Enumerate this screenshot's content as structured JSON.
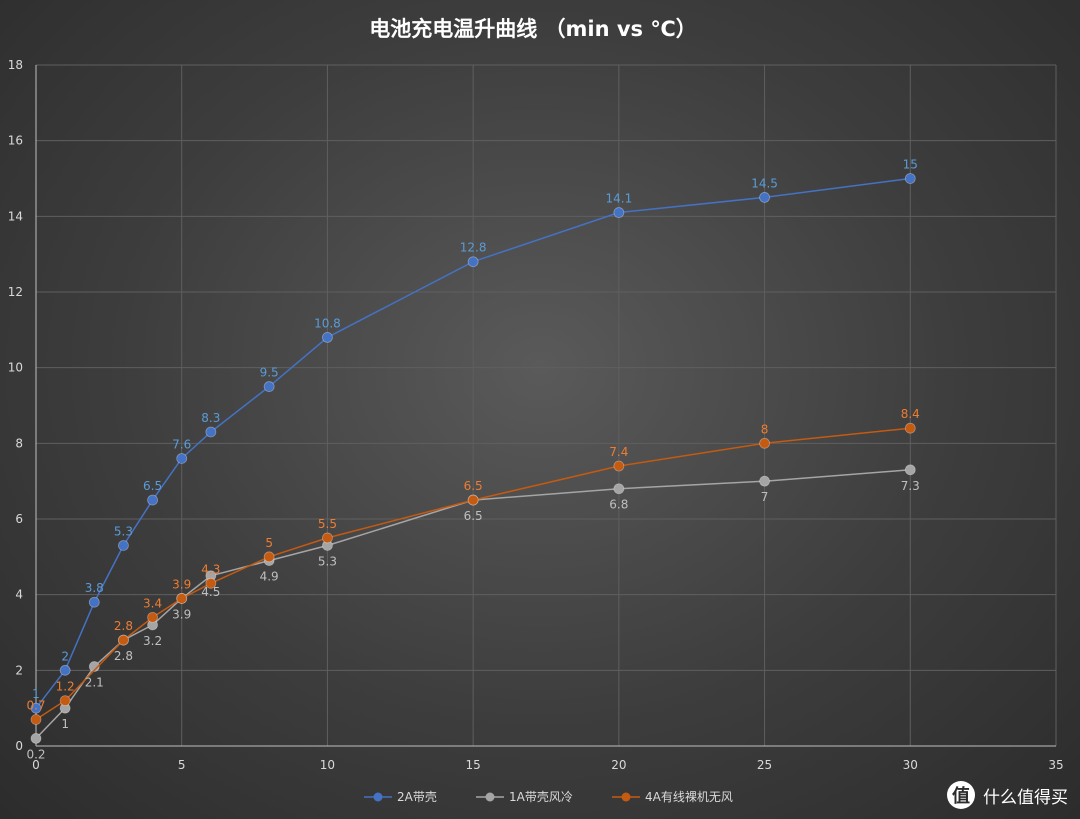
{
  "chart_data": {
    "type": "line",
    "title": "电池充电温升曲线 （min vs ℃）",
    "xlabel": "",
    "ylabel": "",
    "xlim": [
      0,
      35
    ],
    "ylim": [
      0,
      18
    ],
    "x_ticks": [
      0,
      5,
      10,
      15,
      20,
      25,
      30,
      35
    ],
    "y_ticks": [
      0,
      2,
      4,
      6,
      8,
      10,
      12,
      14,
      16,
      18
    ],
    "grid": true,
    "legend_position": "bottom",
    "series": [
      {
        "name": "2A带壳",
        "color": "#4472c4",
        "label_color": "#5b9bd5",
        "label_position": "above",
        "x": [
          0,
          1,
          2,
          3,
          4,
          5,
          6,
          8,
          10,
          15,
          20,
          25,
          30
        ],
        "y": [
          1,
          2,
          3.8,
          5.3,
          6.5,
          7.6,
          8.3,
          9.5,
          10.8,
          12.8,
          14.1,
          14.5,
          15
        ]
      },
      {
        "name": "1A带壳风冷",
        "color": "#a5a5a5",
        "label_color": "#bfbfbf",
        "label_position": "below",
        "x": [
          0,
          1,
          2,
          3,
          4,
          5,
          6,
          8,
          10,
          15,
          20,
          25,
          30
        ],
        "y": [
          0.2,
          1,
          2.1,
          2.8,
          3.2,
          3.9,
          4.5,
          4.9,
          5.3,
          6.5,
          6.8,
          7,
          7.3
        ]
      },
      {
        "name": "4A有线裸机无风",
        "color": "#c55a11",
        "label_color": "#ed7d31",
        "label_position": "above",
        "x": [
          0,
          1,
          3,
          4,
          5,
          6,
          8,
          10,
          15,
          20,
          25,
          30
        ],
        "y": [
          0.7,
          1.2,
          2.8,
          3.4,
          3.9,
          4.3,
          5,
          5.5,
          6.5,
          7.4,
          8,
          8.4
        ]
      }
    ]
  },
  "watermark": {
    "icon": "值",
    "text": "什么值得买"
  }
}
